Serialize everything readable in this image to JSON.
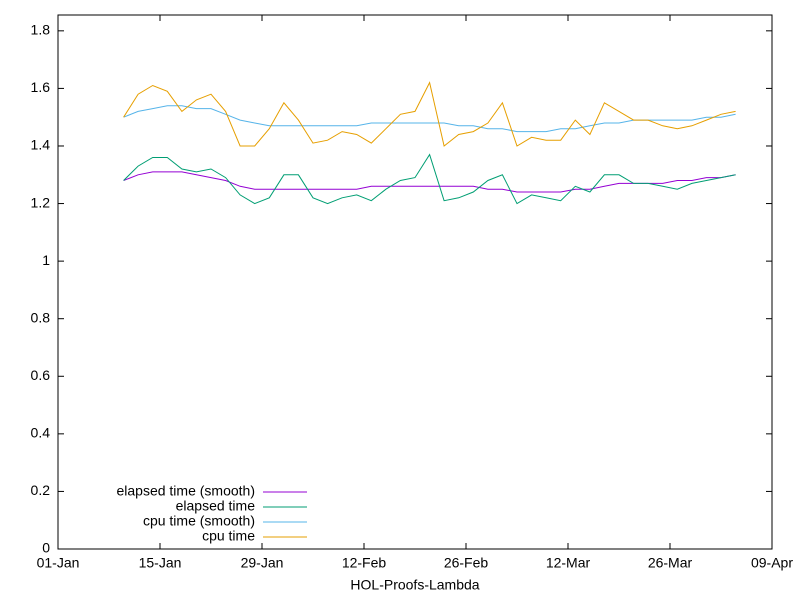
{
  "chart_data": {
    "type": "line",
    "xlabel": "HOL-Proofs-Lambda",
    "x": [
      9,
      11,
      13,
      15,
      17,
      19,
      21,
      23,
      25,
      27,
      29,
      31,
      33,
      35,
      37,
      39,
      41,
      43,
      45,
      47,
      49,
      51,
      53,
      55,
      57,
      59,
      61,
      63,
      65,
      67,
      69,
      71,
      73,
      75,
      77,
      79,
      81,
      83,
      85,
      87,
      89,
      91,
      93
    ],
    "series": [
      {
        "name": "elapsed time (smooth)",
        "color": "#9400d3",
        "values": [
          1.28,
          1.3,
          1.31,
          1.31,
          1.31,
          1.3,
          1.29,
          1.28,
          1.26,
          1.25,
          1.25,
          1.25,
          1.25,
          1.25,
          1.25,
          1.25,
          1.25,
          1.26,
          1.26,
          1.26,
          1.26,
          1.26,
          1.26,
          1.26,
          1.26,
          1.25,
          1.25,
          1.24,
          1.24,
          1.24,
          1.24,
          1.25,
          1.25,
          1.26,
          1.27,
          1.27,
          1.27,
          1.27,
          1.28,
          1.28,
          1.29,
          1.29,
          1.3
        ]
      },
      {
        "name": "elapsed time",
        "color": "#009e73",
        "values": [
          1.28,
          1.33,
          1.36,
          1.36,
          1.32,
          1.31,
          1.32,
          1.29,
          1.23,
          1.2,
          1.22,
          1.3,
          1.3,
          1.22,
          1.2,
          1.22,
          1.23,
          1.21,
          1.25,
          1.28,
          1.29,
          1.37,
          1.21,
          1.22,
          1.24,
          1.28,
          1.3,
          1.2,
          1.23,
          1.22,
          1.21,
          1.26,
          1.24,
          1.3,
          1.3,
          1.27,
          1.27,
          1.26,
          1.25,
          1.27,
          1.28,
          1.29,
          1.3
        ]
      },
      {
        "name": "cpu time (smooth)",
        "color": "#56b4e9",
        "values": [
          1.5,
          1.52,
          1.53,
          1.54,
          1.54,
          1.53,
          1.53,
          1.51,
          1.49,
          1.48,
          1.47,
          1.47,
          1.47,
          1.47,
          1.47,
          1.47,
          1.47,
          1.48,
          1.48,
          1.48,
          1.48,
          1.48,
          1.48,
          1.47,
          1.47,
          1.46,
          1.46,
          1.45,
          1.45,
          1.45,
          1.46,
          1.46,
          1.47,
          1.48,
          1.48,
          1.49,
          1.49,
          1.49,
          1.49,
          1.49,
          1.5,
          1.5,
          1.51
        ]
      },
      {
        "name": "cpu time",
        "color": "#e69f00",
        "values": [
          1.5,
          1.58,
          1.61,
          1.59,
          1.52,
          1.56,
          1.58,
          1.52,
          1.4,
          1.4,
          1.46,
          1.55,
          1.49,
          1.41,
          1.42,
          1.45,
          1.44,
          1.41,
          1.46,
          1.51,
          1.52,
          1.62,
          1.4,
          1.44,
          1.45,
          1.48,
          1.55,
          1.4,
          1.43,
          1.42,
          1.42,
          1.49,
          1.44,
          1.55,
          1.52,
          1.49,
          1.49,
          1.47,
          1.46,
          1.47,
          1.49,
          1.51,
          1.52
        ]
      }
    ],
    "xlim": [
      0,
      98
    ],
    "xticks": [
      {
        "value": 0,
        "label": "01-Jan"
      },
      {
        "value": 14,
        "label": "15-Jan"
      },
      {
        "value": 28,
        "label": "29-Jan"
      },
      {
        "value": 42,
        "label": "12-Feb"
      },
      {
        "value": 56,
        "label": "26-Feb"
      },
      {
        "value": 70,
        "label": "12-Mar"
      },
      {
        "value": 84,
        "label": "26-Mar"
      },
      {
        "value": 98,
        "label": "09-Apr"
      }
    ],
    "ylim": [
      0,
      1.855
    ],
    "yticks": [
      0,
      0.2,
      0.4,
      0.6,
      0.8,
      1,
      1.2,
      1.4,
      1.6,
      1.8
    ],
    "legend": "lower-left"
  }
}
